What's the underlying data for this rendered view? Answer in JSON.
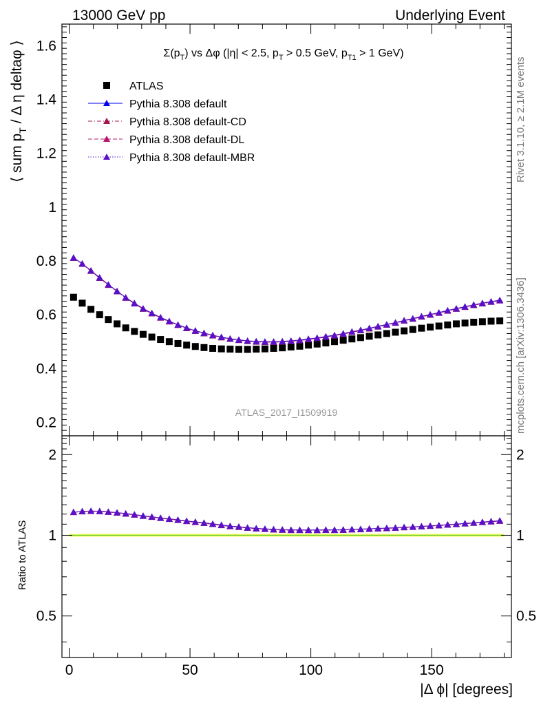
{
  "header": {
    "left_label": "13000 GeV pp",
    "right_label": "Underlying Event"
  },
  "side_labels": {
    "rivet": "Rivet 3.1.10, ≥ 2.1M events",
    "mcplots": "mcplots.cern.ch [arXiv:1306.3436]"
  },
  "watermark": "ATLAS_2017_I1509919",
  "chart_data": {
    "type": "scatter",
    "title": {
      "seg1": "Σ(p",
      "sub1": "T",
      "seg2": ") vs Δφ (|η| < 2.5, p",
      "sub2": "T",
      "seg3": " > 0.5 GeV, p",
      "sub3": "T1",
      "seg4": " > 1 GeV)"
    },
    "ylabel": {
      "main": "⟨ sum p",
      "sub": "T",
      "rest": " / Δ η deltaφ ⟩"
    },
    "xlabel": "|Δ ϕ| [degrees]",
    "ratio_ylabel": "Ratio to ATLAS",
    "xlim": [
      -3,
      183
    ],
    "ylim": [
      0.15,
      1.68
    ],
    "ratio_ylim": [
      0.35,
      2.35
    ],
    "ratio_log": true,
    "x_major_ticks": [
      0,
      50,
      100,
      150
    ],
    "y_major_ticks": [
      0.2,
      0.4,
      0.6,
      0.8,
      1,
      1.2,
      1.4,
      1.6
    ],
    "y_tick_labels": [
      "0.2",
      "0.4",
      "0.6",
      "0.8",
      "1",
      "1.2",
      "1.4",
      "1.6"
    ],
    "ratio_major_ticks": [
      0.5,
      1,
      2
    ],
    "ratio_tick_labels": [
      "0.5",
      "1",
      "2"
    ],
    "x": [
      1.8,
      5.4,
      9.0,
      12.6,
      16.2,
      19.8,
      23.4,
      27.0,
      30.6,
      34.2,
      37.8,
      41.4,
      45.0,
      48.6,
      52.2,
      55.8,
      59.4,
      63.0,
      66.6,
      70.2,
      73.8,
      77.4,
      81.0,
      84.6,
      88.2,
      91.8,
      95.4,
      99.0,
      102.6,
      106.2,
      109.8,
      113.4,
      117.0,
      120.6,
      124.2,
      127.8,
      131.4,
      135.0,
      138.6,
      142.2,
      145.8,
      149.4,
      153.0,
      156.6,
      160.2,
      163.8,
      167.4,
      171.0,
      174.6,
      178.2
    ],
    "series": [
      {
        "name": "ATLAS",
        "color": "#000000",
        "marker": "square",
        "line": "none",
        "values": [
          0.665,
          0.643,
          0.62,
          0.6,
          0.582,
          0.566,
          0.551,
          0.538,
          0.527,
          0.517,
          0.508,
          0.5,
          0.493,
          0.487,
          0.482,
          0.478,
          0.475,
          0.473,
          0.472,
          0.471,
          0.471,
          0.472,
          0.473,
          0.475,
          0.477,
          0.48,
          0.483,
          0.487,
          0.491,
          0.495,
          0.5,
          0.505,
          0.51,
          0.515,
          0.52,
          0.525,
          0.53,
          0.535,
          0.54,
          0.545,
          0.55,
          0.554,
          0.558,
          0.562,
          0.566,
          0.569,
          0.572,
          0.574,
          0.576,
          0.577
        ]
      },
      {
        "name": "Pythia 8.308 default",
        "color": "#0000ee",
        "marker": "triangle",
        "line": "solid",
        "values": [
          0.812,
          0.79,
          0.764,
          0.738,
          0.712,
          0.688,
          0.664,
          0.643,
          0.623,
          0.606,
          0.59,
          0.576,
          0.563,
          0.551,
          0.541,
          0.532,
          0.524,
          0.517,
          0.511,
          0.507,
          0.503,
          0.501,
          0.5,
          0.5,
          0.501,
          0.503,
          0.506,
          0.51,
          0.514,
          0.519,
          0.524,
          0.53,
          0.537,
          0.543,
          0.55,
          0.557,
          0.564,
          0.571,
          0.579,
          0.586,
          0.594,
          0.601,
          0.608,
          0.616,
          0.623,
          0.63,
          0.637,
          0.643,
          0.649,
          0.654
        ]
      },
      {
        "name": "Pythia 8.308 default-CD",
        "color": "#a0154e",
        "marker": "triangle",
        "line": "dashdot",
        "values": [
          0.81,
          0.788,
          0.762,
          0.736,
          0.71,
          0.686,
          0.662,
          0.641,
          0.621,
          0.604,
          0.588,
          0.574,
          0.561,
          0.549,
          0.539,
          0.53,
          0.522,
          0.515,
          0.509,
          0.505,
          0.501,
          0.499,
          0.498,
          0.498,
          0.499,
          0.501,
          0.504,
          0.508,
          0.512,
          0.517,
          0.522,
          0.528,
          0.535,
          0.541,
          0.548,
          0.555,
          0.562,
          0.569,
          0.577,
          0.584,
          0.592,
          0.599,
          0.606,
          0.614,
          0.621,
          0.628,
          0.635,
          0.641,
          0.647,
          0.652
        ]
      },
      {
        "name": "Pythia 8.308 default-DL",
        "color": "#b8156e",
        "marker": "triangle",
        "line": "dashed",
        "values": [
          0.81,
          0.789,
          0.763,
          0.737,
          0.711,
          0.687,
          0.663,
          0.642,
          0.622,
          0.605,
          0.589,
          0.575,
          0.562,
          0.55,
          0.54,
          0.531,
          0.523,
          0.516,
          0.51,
          0.506,
          0.502,
          0.5,
          0.499,
          0.499,
          0.5,
          0.502,
          0.505,
          0.509,
          0.513,
          0.518,
          0.523,
          0.529,
          0.536,
          0.542,
          0.549,
          0.556,
          0.563,
          0.57,
          0.578,
          0.585,
          0.593,
          0.6,
          0.607,
          0.615,
          0.622,
          0.629,
          0.636,
          0.642,
          0.648,
          0.653
        ]
      },
      {
        "name": "Pythia 8.308 default-MBR",
        "color": "#5a10c8",
        "marker": "triangle",
        "line": "dotted",
        "values": [
          0.811,
          0.789,
          0.763,
          0.737,
          0.711,
          0.687,
          0.663,
          0.642,
          0.622,
          0.605,
          0.589,
          0.575,
          0.562,
          0.55,
          0.54,
          0.531,
          0.523,
          0.516,
          0.51,
          0.506,
          0.502,
          0.5,
          0.499,
          0.499,
          0.5,
          0.502,
          0.505,
          0.509,
          0.513,
          0.518,
          0.523,
          0.529,
          0.536,
          0.542,
          0.549,
          0.556,
          0.563,
          0.57,
          0.578,
          0.585,
          0.593,
          0.6,
          0.607,
          0.615,
          0.622,
          0.629,
          0.636,
          0.642,
          0.648,
          0.653
        ]
      }
    ],
    "band_color": "#ffff66",
    "band_edge_color": "#66cc33"
  }
}
